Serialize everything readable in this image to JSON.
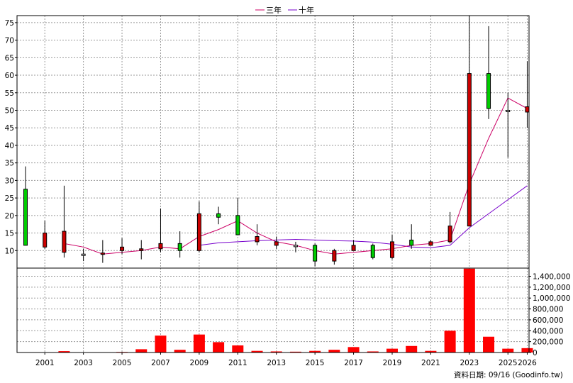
{
  "chart_data": {
    "type": "candlestick",
    "legend": {
      "position": "top-center",
      "items": [
        {
          "label": "三年",
          "color": "#cc0066"
        },
        {
          "label": "十年",
          "color": "#7700cc"
        }
      ]
    },
    "price_axis": {
      "ylim": [
        5,
        77
      ],
      "ticks": [
        10,
        15,
        20,
        25,
        30,
        35,
        40,
        45,
        50,
        55,
        60,
        65,
        70,
        75
      ]
    },
    "volume_axis": {
      "ylim": [
        0,
        1550000
      ],
      "ticks": [
        0,
        200000,
        400000,
        600000,
        800000,
        1000000,
        1200000,
        1400000
      ],
      "tick_labels": [
        "0",
        "200,000",
        "400,000",
        "600,000",
        "800,000",
        "1,000,000",
        "1,200,000",
        "1,400,000"
      ]
    },
    "x_tick_labels": [
      "2001",
      "2003",
      "2005",
      "2007",
      "2009",
      "2011",
      "2013",
      "2015",
      "2017",
      "2019",
      "2021",
      "2023",
      "2025",
      "2026"
    ],
    "colors": {
      "up": "#00cc00",
      "down": "#cc0000",
      "volume": "#ff0000",
      "grid": "#999999"
    },
    "candles": [
      {
        "year": 2000,
        "open": 11.5,
        "close": 27.5,
        "high": 34,
        "low": 11.5,
        "volume": 0
      },
      {
        "year": 2001,
        "open": 15,
        "close": 11,
        "high": 18.5,
        "low": 10.5,
        "volume": 0
      },
      {
        "year": 2002,
        "open": 15.5,
        "close": 9.5,
        "high": 28.5,
        "low": 8,
        "volume": 25000
      },
      {
        "year": 2003,
        "open": 9,
        "close": 9,
        "high": 10.5,
        "low": 7,
        "volume": 5000
      },
      {
        "year": 2004,
        "open": 9.3,
        "close": 9,
        "high": 13,
        "low": 6.5,
        "volume": 5000
      },
      {
        "year": 2005,
        "open": 11,
        "close": 10,
        "high": 13.5,
        "low": 9,
        "volume": 10000
      },
      {
        "year": 2006,
        "open": 10.5,
        "close": 10,
        "high": 13,
        "low": 7.5,
        "volume": 60000
      },
      {
        "year": 2007,
        "open": 12,
        "close": 10.5,
        "high": 22,
        "low": 9.5,
        "volume": 310000
      },
      {
        "year": 2008,
        "open": 10,
        "close": 12,
        "high": 15.5,
        "low": 8,
        "volume": 50000
      },
      {
        "year": 2009,
        "open": 20.5,
        "close": 10,
        "high": 24,
        "low": 9.5,
        "volume": 330000
      },
      {
        "year": 2010,
        "open": 19.5,
        "close": 20.5,
        "high": 22.5,
        "low": 17.5,
        "volume": 190000
      },
      {
        "year": 2011,
        "open": 14.5,
        "close": 20,
        "high": 25,
        "low": 14.5,
        "volume": 130000
      },
      {
        "year": 2012,
        "open": 14,
        "close": 12.5,
        "high": 17.5,
        "low": 11.5,
        "volume": 30000
      },
      {
        "year": 2013,
        "open": 12.5,
        "close": 11.5,
        "high": 14,
        "low": 10.5,
        "volume": 20000
      },
      {
        "year": 2014,
        "open": 11.5,
        "close": 11.5,
        "high": 12.5,
        "low": 9.5,
        "volume": 15000
      },
      {
        "year": 2015,
        "open": 7,
        "close": 11.5,
        "high": 12,
        "low": 5.5,
        "volume": 30000
      },
      {
        "year": 2016,
        "open": 10,
        "close": 7,
        "high": 10.5,
        "low": 6,
        "volume": 50000
      },
      {
        "year": 2017,
        "open": 11.5,
        "close": 10,
        "high": 13,
        "low": 10,
        "volume": 100000
      },
      {
        "year": 2018,
        "open": 8,
        "close": 11.5,
        "high": 12,
        "low": 7.5,
        "volume": 20000
      },
      {
        "year": 2019,
        "open": 12.5,
        "close": 8,
        "high": 14.5,
        "low": 7.5,
        "volume": 70000
      },
      {
        "year": 2020,
        "open": 11.5,
        "close": 13,
        "high": 17.5,
        "low": 10.5,
        "volume": 120000
      },
      {
        "year": 2021,
        "open": 12.5,
        "close": 11.5,
        "high": 13,
        "low": 11.5,
        "volume": 30000
      },
      {
        "year": 2022,
        "open": 17,
        "close": 12.5,
        "high": 21,
        "low": 12,
        "volume": 400000
      },
      {
        "year": 2023,
        "open": 60.5,
        "close": 17,
        "high": 77,
        "low": 17,
        "volume": 1540000
      },
      {
        "year": 2024,
        "open": 50.5,
        "close": 60.5,
        "high": 74,
        "low": 47.5,
        "volume": 290000
      },
      {
        "year": 2025,
        "open": 50,
        "close": 50,
        "high": 55,
        "low": 36.5,
        "volume": 70000
      },
      {
        "year": 2026,
        "open": 51,
        "close": 49.5,
        "high": 64,
        "low": 45,
        "volume": 80000
      }
    ],
    "ma_3y": [
      {
        "year": 2002,
        "value": 12
      },
      {
        "year": 2003,
        "value": 11
      },
      {
        "year": 2004,
        "value": 9
      },
      {
        "year": 2005,
        "value": 9.5
      },
      {
        "year": 2006,
        "value": 10
      },
      {
        "year": 2007,
        "value": 11
      },
      {
        "year": 2008,
        "value": 10.5
      },
      {
        "year": 2009,
        "value": 14
      },
      {
        "year": 2010,
        "value": 16
      },
      {
        "year": 2011,
        "value": 18.5
      },
      {
        "year": 2012,
        "value": 15
      },
      {
        "year": 2013,
        "value": 12.5
      },
      {
        "year": 2014,
        "value": 11.5
      },
      {
        "year": 2015,
        "value": 10
      },
      {
        "year": 2016,
        "value": 9
      },
      {
        "year": 2017,
        "value": 9.5
      },
      {
        "year": 2018,
        "value": 10
      },
      {
        "year": 2019,
        "value": 10.5
      },
      {
        "year": 2020,
        "value": 11.5
      },
      {
        "year": 2021,
        "value": 12
      },
      {
        "year": 2022,
        "value": 13
      },
      {
        "year": 2023,
        "value": 29
      },
      {
        "year": 2024,
        "value": 42
      },
      {
        "year": 2025,
        "value": 53.5
      },
      {
        "year": 2026,
        "value": 50.5
      }
    ],
    "ma_10y": [
      {
        "year": 2009,
        "value": 11.5
      },
      {
        "year": 2010,
        "value": 12.2
      },
      {
        "year": 2011,
        "value": 12.5
      },
      {
        "year": 2012,
        "value": 12.8
      },
      {
        "year": 2013,
        "value": 13
      },
      {
        "year": 2014,
        "value": 13.2
      },
      {
        "year": 2015,
        "value": 13
      },
      {
        "year": 2016,
        "value": 12.8
      },
      {
        "year": 2017,
        "value": 12.7
      },
      {
        "year": 2018,
        "value": 12.4
      },
      {
        "year": 2019,
        "value": 11.8
      },
      {
        "year": 2020,
        "value": 11
      },
      {
        "year": 2021,
        "value": 10.8
      },
      {
        "year": 2022,
        "value": 11.5
      },
      {
        "year": 2023,
        "value": 16.5
      },
      {
        "year": 2024,
        "value": 20.5
      },
      {
        "year": 2025,
        "value": 24.5
      },
      {
        "year": 2026,
        "value": 28.5
      }
    ],
    "footer_text": "資料日期: 09/16  (Goodinfo.tw)"
  }
}
